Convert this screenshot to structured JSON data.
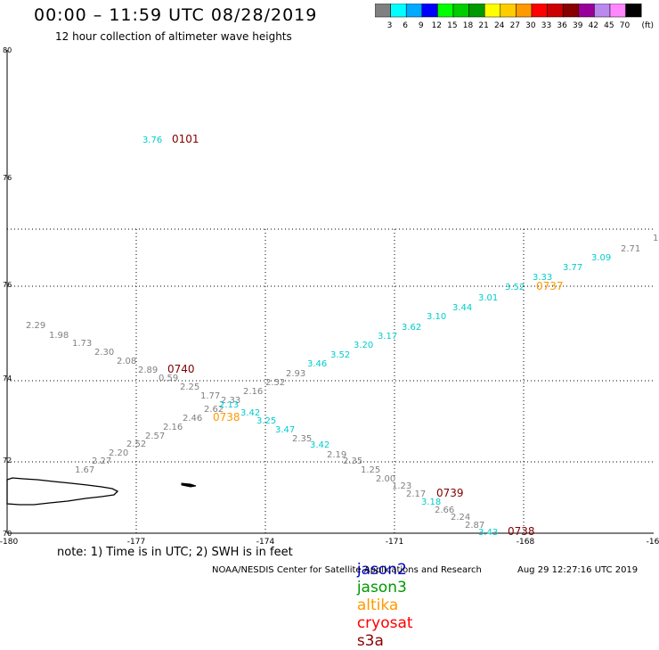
{
  "header": {
    "title": "00:00 – 11:59 UTC 08/28/2019",
    "subtitle": "12 hour collection of altimeter wave heights"
  },
  "legend": {
    "unit": "(ft)",
    "swatches": [
      {
        "color": "#808080",
        "label": "3"
      },
      {
        "color": "#00ffff",
        "label": "6"
      },
      {
        "color": "#00aaff",
        "label": "9"
      },
      {
        "color": "#0000ff",
        "label": "12"
      },
      {
        "color": "#00ff00",
        "label": "15"
      },
      {
        "color": "#00cc00",
        "label": "18"
      },
      {
        "color": "#009900",
        "label": "21"
      },
      {
        "color": "#ffff00",
        "label": "24"
      },
      {
        "color": "#ffcc00",
        "label": "27"
      },
      {
        "color": "#ff9900",
        "label": "30"
      },
      {
        "color": "#ff0000",
        "label": "33"
      },
      {
        "color": "#cc0000",
        "label": "36"
      },
      {
        "color": "#880000",
        "label": "39"
      },
      {
        "color": "#990099",
        "label": "42"
      },
      {
        "color": "#bb88ee",
        "label": "45"
      },
      {
        "color": "#ff88ff",
        "label": "70"
      },
      {
        "color": "#000000",
        "label": ""
      }
    ]
  },
  "axes": {
    "x_ticks": [
      "-180",
      "-177",
      "-174",
      "-171",
      "-168",
      "-16"
    ],
    "y_ticks": [
      "80",
      "76",
      "76",
      "74",
      "72",
      "70"
    ]
  },
  "observations": [
    {
      "text": "3.76",
      "color": "#00cccc"
    },
    {
      "text": "0101",
      "color": "#800000"
    },
    {
      "text": "2.29",
      "color": "#808080"
    },
    {
      "text": "1.98",
      "color": "#808080"
    },
    {
      "text": "1.73",
      "color": "#808080"
    },
    {
      "text": "2.30",
      "color": "#808080"
    },
    {
      "text": "2.08",
      "color": "#808080"
    },
    {
      "text": "2.89",
      "color": "#808080"
    },
    {
      "text": "0740",
      "color": "#800000"
    },
    {
      "text": "0.59",
      "color": "#808080"
    },
    {
      "text": "2.25",
      "color": "#808080"
    },
    {
      "text": "1.77",
      "color": "#808080"
    },
    {
      "text": "2.33",
      "color": "#808080"
    },
    {
      "text": "2.16",
      "color": "#808080"
    },
    {
      "text": "2.52",
      "color": "#808080"
    },
    {
      "text": "2.93",
      "color": "#808080"
    },
    {
      "text": "2.62",
      "color": "#808080"
    },
    {
      "text": "2.13",
      "color": "#00cccc"
    },
    {
      "text": "3.42",
      "color": "#00cccc"
    },
    {
      "text": "2.46",
      "color": "#808080"
    },
    {
      "text": "0738",
      "color": "#ff9900"
    },
    {
      "text": "3.25",
      "color": "#00cccc"
    },
    {
      "text": "2.16",
      "color": "#808080"
    },
    {
      "text": "3.47",
      "color": "#00cccc"
    },
    {
      "text": "2.57",
      "color": "#808080"
    },
    {
      "text": "2.35",
      "color": "#808080"
    },
    {
      "text": "2.52",
      "color": "#808080"
    },
    {
      "text": "3.42",
      "color": "#00cccc"
    },
    {
      "text": "2.20",
      "color": "#808080"
    },
    {
      "text": "2.19",
      "color": "#808080"
    },
    {
      "text": "2.27",
      "color": "#808080"
    },
    {
      "text": "2.35",
      "color": "#808080"
    },
    {
      "text": "1.67",
      "color": "#808080"
    },
    {
      "text": "1.25",
      "color": "#808080"
    },
    {
      "text": "2.00",
      "color": "#808080"
    },
    {
      "text": "1.23",
      "color": "#808080"
    },
    {
      "text": "2.17",
      "color": "#808080"
    },
    {
      "text": "0739",
      "color": "#800000"
    },
    {
      "text": "3.18",
      "color": "#00cccc"
    },
    {
      "text": "2.66",
      "color": "#808080"
    },
    {
      "text": "2.24",
      "color": "#808080"
    },
    {
      "text": "2.87",
      "color": "#808080"
    },
    {
      "text": "3.43",
      "color": "#00cccc"
    },
    {
      "text": "0738",
      "color": "#800000"
    },
    {
      "text": "3.46",
      "color": "#00cccc"
    },
    {
      "text": "3.52",
      "color": "#00cccc"
    },
    {
      "text": "3.20",
      "color": "#00cccc"
    },
    {
      "text": "3.17",
      "color": "#00cccc"
    },
    {
      "text": "3.62",
      "color": "#00cccc"
    },
    {
      "text": "3.10",
      "color": "#00cccc"
    },
    {
      "text": "3.44",
      "color": "#00cccc"
    },
    {
      "text": "3.01",
      "color": "#00cccc"
    },
    {
      "text": "3.52",
      "color": "#00cccc"
    },
    {
      "text": "0737",
      "color": "#ff9900"
    },
    {
      "text": "3.33",
      "color": "#00cccc"
    },
    {
      "text": "3.77",
      "color": "#00cccc"
    },
    {
      "text": "3.09",
      "color": "#00cccc"
    },
    {
      "text": "2.71",
      "color": "#808080"
    },
    {
      "text": "1",
      "color": "#808080"
    }
  ],
  "footer": {
    "note": "note: 1) Time is in UTC; 2) SWH is in feet",
    "satellites": [
      {
        "name": "jason2",
        "color": "#0000cc"
      },
      {
        "name": "jason3",
        "color": "#009900"
      },
      {
        "name": "altika",
        "color": "#ff9900"
      },
      {
        "name": "cryosat",
        "color": "#ff0000"
      },
      {
        "name": "s3a",
        "color": "#880000"
      }
    ],
    "credit": "NOAA/NESDIS Center for Satellite Applications and Research",
    "timestamp": "Aug 29 12:27:16 UTC 2019"
  }
}
